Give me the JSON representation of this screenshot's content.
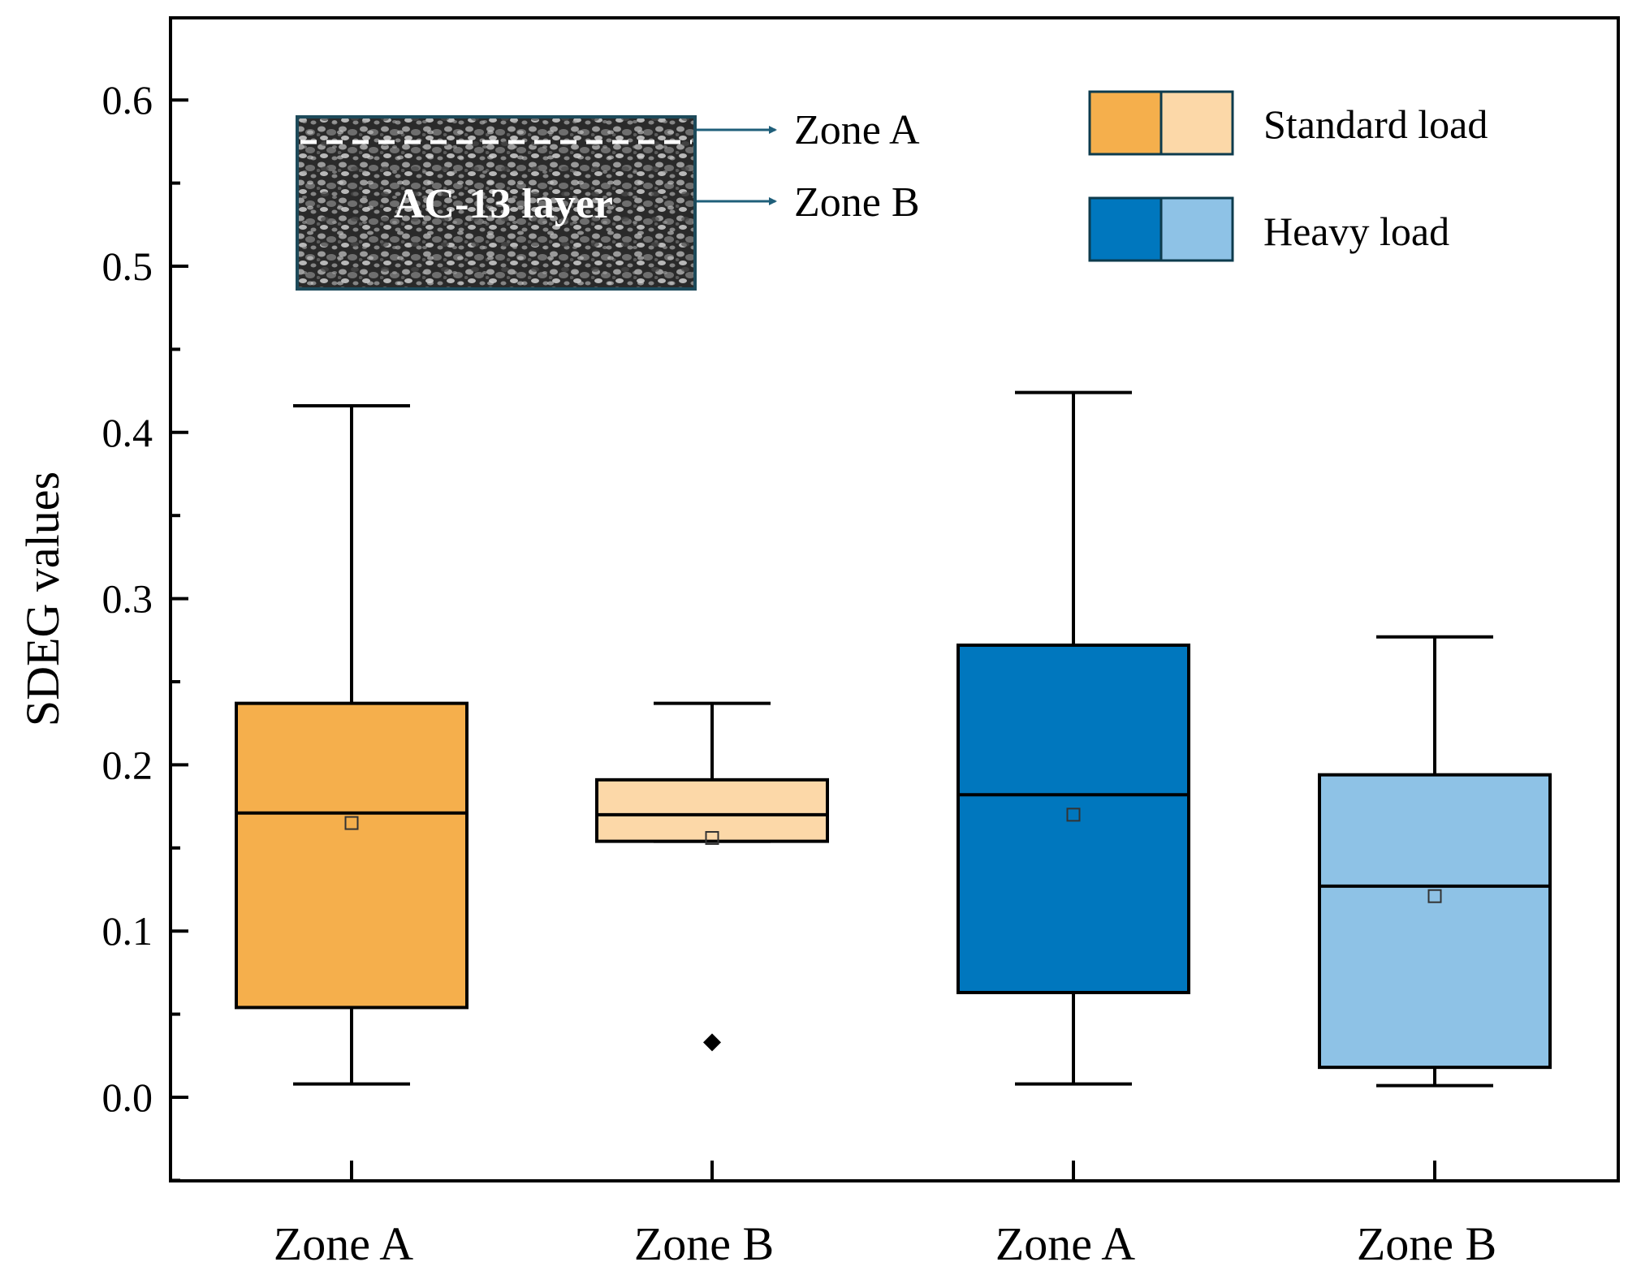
{
  "chart_data": {
    "type": "box",
    "ylabel": "SDEG values",
    "xlabel": "",
    "ylim": [
      -0.05,
      0.65
    ],
    "yticks": [
      "0.0",
      "0.1",
      "0.2",
      "0.3",
      "0.4",
      "0.5",
      "0.6"
    ],
    "categories": [
      "Zone A",
      "Zone B",
      "Zone A",
      "Zone B"
    ],
    "boxes": [
      {
        "category": "Zone A",
        "group": "Standard load",
        "color": "#F5AF4C",
        "whisker_low": 0.008,
        "q1": 0.054,
        "median": 0.171,
        "mean": 0.165,
        "q3": 0.237,
        "whisker_high": 0.416,
        "outliers": []
      },
      {
        "category": "Zone B",
        "group": "Standard load",
        "color": "#FCD8A8",
        "whisker_low": 0.154,
        "q1": 0.154,
        "median": 0.17,
        "mean": 0.156,
        "q3": 0.191,
        "whisker_high": 0.237,
        "outliers": [
          0.033
        ]
      },
      {
        "category": "Zone A",
        "group": "Heavy load",
        "color": "#0077BE",
        "whisker_low": 0.008,
        "q1": 0.063,
        "median": 0.182,
        "mean": 0.17,
        "q3": 0.272,
        "whisker_high": 0.424,
        "outliers": []
      },
      {
        "category": "Zone B",
        "group": "Heavy load",
        "color": "#8EC2E6",
        "whisker_low": 0.007,
        "q1": 0.018,
        "median": 0.127,
        "mean": 0.121,
        "q3": 0.194,
        "whisker_high": 0.277,
        "outliers": []
      }
    ],
    "legend": [
      {
        "label": "Standard load",
        "colors": [
          "#F5AF4C",
          "#FCD8A8"
        ]
      },
      {
        "label": "Heavy load",
        "colors": [
          "#0077BE",
          "#8EC2E6"
        ]
      }
    ],
    "inset": {
      "title": "AC-13 layer",
      "annotations": [
        "Zone A",
        "Zone B"
      ]
    }
  }
}
